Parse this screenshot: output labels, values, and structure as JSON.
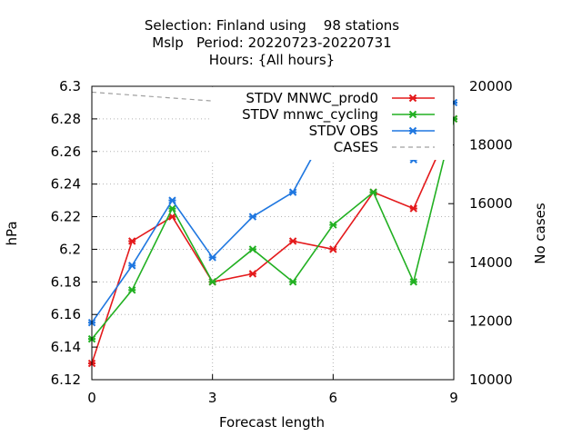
{
  "chart_data": {
    "type": "line",
    "title_lines": [
      "Selection: Finland using    98 stations",
      "Mslp   Period: 20220723-20220731",
      "Hours: {All hours}"
    ],
    "xlabel": "Forecast length",
    "ylabel": "hPa",
    "y2label": "No cases",
    "xlim": [
      0,
      9
    ],
    "ylim": [
      6.12,
      6.3
    ],
    "y2lim": [
      10000,
      20000
    ],
    "x_ticks": [
      0,
      3,
      6,
      9
    ],
    "y_ticks": [
      "6.12",
      "6.14",
      "6.16",
      "6.18",
      "6.2",
      "6.22",
      "6.24",
      "6.26",
      "6.28",
      "6.3"
    ],
    "y2_ticks": [
      "10000",
      "12000",
      "14000",
      "16000",
      "18000",
      "20000"
    ],
    "grid": true,
    "legend_position": "top-right",
    "x": [
      0,
      1,
      2,
      3,
      4,
      5,
      6,
      7,
      8,
      9
    ],
    "series": [
      {
        "name": "STDV MNWC_prod0",
        "color": "#e41a1c",
        "axis": "y1",
        "style": "solid-marker",
        "values": [
          6.13,
          6.205,
          6.22,
          6.18,
          6.185,
          6.205,
          6.2,
          6.235,
          6.225,
          6.28
        ]
      },
      {
        "name": "STDV mnwc_cycling",
        "color": "#22b022",
        "axis": "y1",
        "style": "solid-marker",
        "values": [
          6.145,
          6.175,
          6.225,
          6.18,
          6.2,
          6.18,
          6.215,
          6.235,
          6.18,
          6.28
        ]
      },
      {
        "name": "STDV OBS",
        "color": "#1f77e0",
        "axis": "y1",
        "style": "solid-marker",
        "values": [
          6.155,
          6.19,
          6.23,
          6.195,
          6.22,
          6.235,
          6.28,
          6.285,
          6.255,
          6.29
        ]
      },
      {
        "name": "CASES",
        "color": "#a0a0a0",
        "axis": "y2",
        "style": "dashed",
        "values": [
          19800,
          19700,
          19600,
          19500,
          19400,
          19300,
          19200,
          19100,
          19000,
          18950
        ]
      }
    ]
  }
}
